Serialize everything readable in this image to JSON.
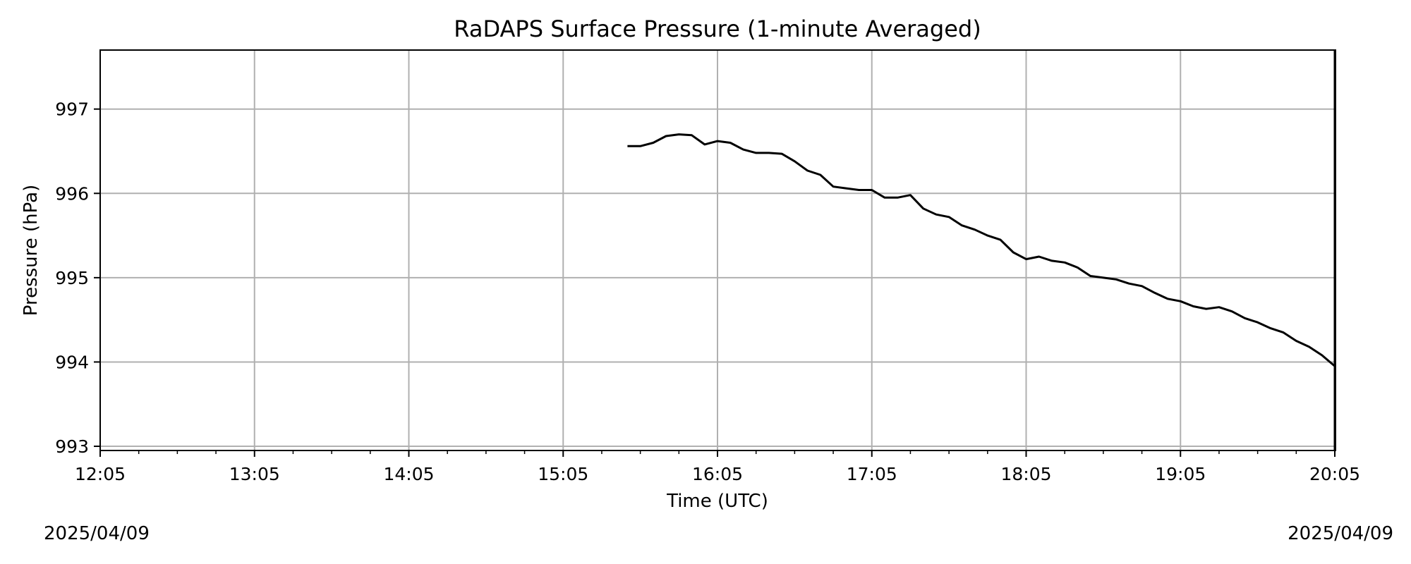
{
  "chart_data": {
    "type": "line",
    "title": "RaDAPS Surface Pressure (1-minute Averaged)",
    "xlabel": "Time (UTC)",
    "ylabel": "Pressure (hPa)",
    "date_left": "2025/04/09",
    "date_right": "2025/04/09",
    "x_ticks": [
      "12:05",
      "13:05",
      "14:05",
      "15:05",
      "16:05",
      "17:05",
      "18:05",
      "19:05",
      "20:05"
    ],
    "x_tick_minutes": [
      725,
      785,
      845,
      905,
      965,
      1025,
      1085,
      1145,
      1205
    ],
    "xlim": [
      "12:05",
      "20:05"
    ],
    "y_ticks": [
      993,
      994,
      995,
      996,
      997
    ],
    "ylim": [
      992.95,
      997.7
    ],
    "grid": true,
    "line_color": "#000000",
    "grid_color": "#b0b0b0",
    "series": [
      {
        "x": [
          "15:30",
          "15:35",
          "15:40",
          "15:45",
          "15:50",
          "15:55",
          "16:00",
          "16:05",
          "16:10",
          "16:15",
          "16:20",
          "16:25",
          "16:30",
          "16:35",
          "16:40",
          "16:45",
          "16:50",
          "16:55",
          "17:00",
          "17:05",
          "17:10",
          "17:15",
          "17:20",
          "17:25",
          "17:30",
          "17:35",
          "17:40",
          "17:45",
          "17:50",
          "17:55",
          "18:00",
          "18:05",
          "18:10",
          "18:15",
          "18:20",
          "18:25",
          "18:30",
          "18:35",
          "18:40",
          "18:45",
          "18:50",
          "18:55",
          "19:00",
          "19:05",
          "19:10",
          "19:15",
          "19:20",
          "19:25",
          "19:30",
          "19:35",
          "19:40",
          "19:45",
          "19:50",
          "19:55",
          "20:00",
          "20:05"
        ],
        "y": [
          996.56,
          996.56,
          996.6,
          996.68,
          996.7,
          996.69,
          996.58,
          996.62,
          996.6,
          996.52,
          996.48,
          996.48,
          996.47,
          996.38,
          996.27,
          996.22,
          996.08,
          996.06,
          996.04,
          996.04,
          995.95,
          995.95,
          995.98,
          995.82,
          995.75,
          995.72,
          995.62,
          995.57,
          995.5,
          995.45,
          995.3,
          995.22,
          995.25,
          995.2,
          995.18,
          995.12,
          995.02,
          995.0,
          994.98,
          994.93,
          994.9,
          994.82,
          994.75,
          994.72,
          994.66,
          994.63,
          994.65,
          994.6,
          994.52,
          994.47,
          994.4,
          994.35,
          994.25,
          994.18,
          994.08,
          993.95
        ]
      }
    ]
  }
}
